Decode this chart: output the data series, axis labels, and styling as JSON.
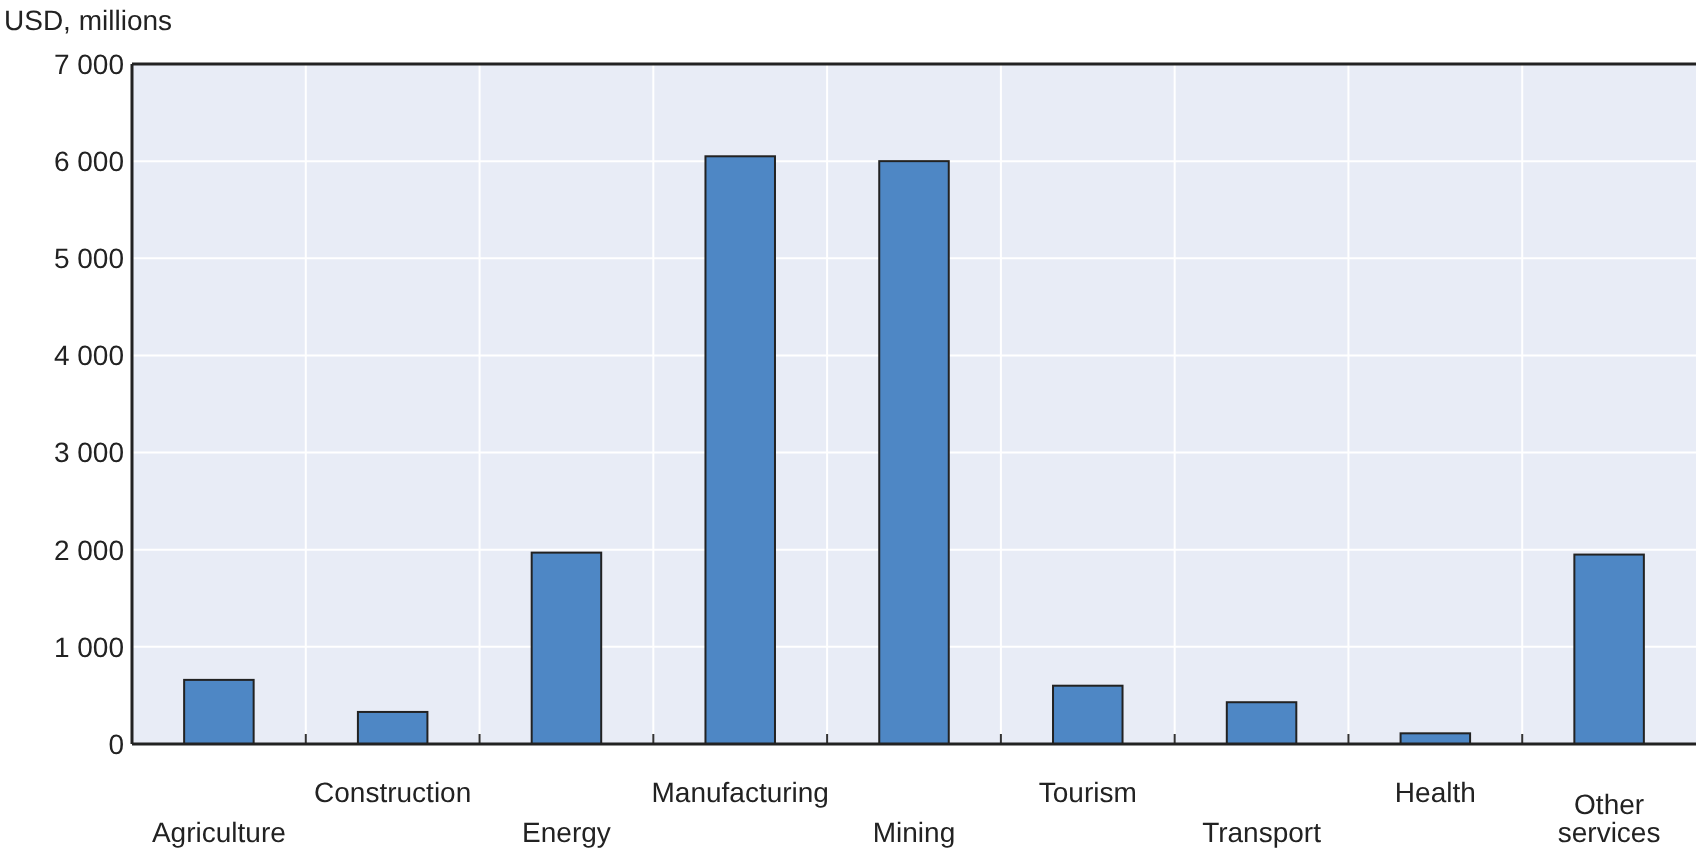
{
  "chart_data": {
    "type": "bar",
    "ylabel": "USD, millions",
    "categories": [
      "Agriculture",
      "Construction",
      "Energy",
      "Manufacturing",
      "Mining",
      "Tourism",
      "Transport",
      "Health",
      "Other services"
    ],
    "values": [
      660,
      330,
      1970,
      6050,
      6000,
      600,
      430,
      110,
      1950
    ],
    "color": "#4e87c5",
    "ylim": [
      0,
      7000
    ],
    "yticks": [
      0,
      {
        "value": 1000,
        "label": "1 000"
      },
      {
        "value": 2000,
        "label": "2 000"
      },
      {
        "value": 3000,
        "label": "3 000"
      },
      {
        "value": 4000,
        "label": "4 000"
      },
      {
        "value": 5000,
        "label": "5 000"
      },
      {
        "value": 6000,
        "label": "6 000"
      },
      {
        "value": 7000,
        "label": "7 000"
      }
    ],
    "grid": true
  }
}
